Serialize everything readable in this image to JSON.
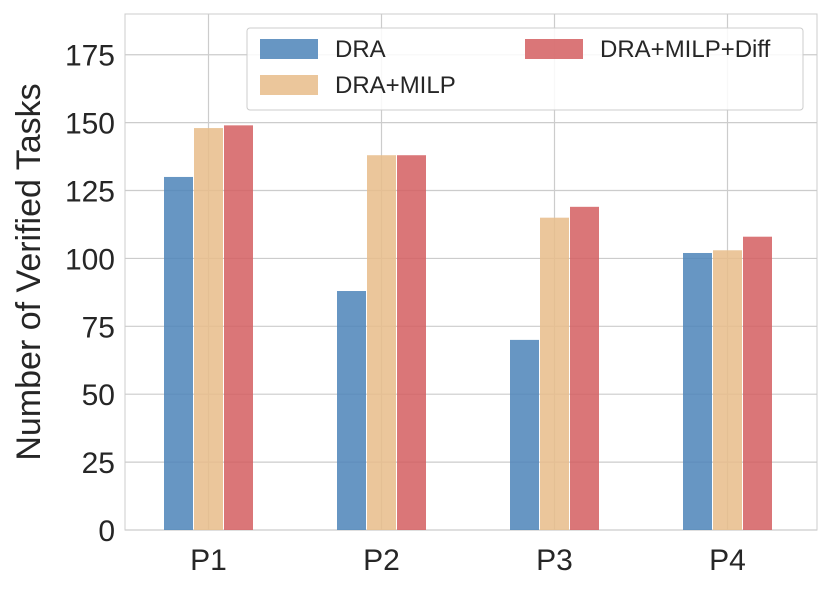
{
  "chart_data": {
    "type": "bar",
    "title": "",
    "xlabel": "",
    "ylabel": "Number of Verified Tasks",
    "categories": [
      "P1",
      "P2",
      "P3",
      "P4"
    ],
    "series": [
      {
        "name": "DRA",
        "color": "#4C84B8",
        "values": [
          130,
          88,
          70,
          102
        ]
      },
      {
        "name": "DRA+MILP",
        "color": "#E8BC89",
        "values": [
          148,
          138,
          115,
          103
        ]
      },
      {
        "name": "DRA+MILP+Diff",
        "color": "#D35E60",
        "values": [
          149,
          138,
          119,
          108
        ]
      }
    ],
    "ylim": [
      0,
      190
    ],
    "yticks": [
      0,
      25,
      50,
      75,
      100,
      125,
      150,
      175
    ],
    "grid": true,
    "legend": {
      "placement": "top-right",
      "columns": 2
    }
  }
}
